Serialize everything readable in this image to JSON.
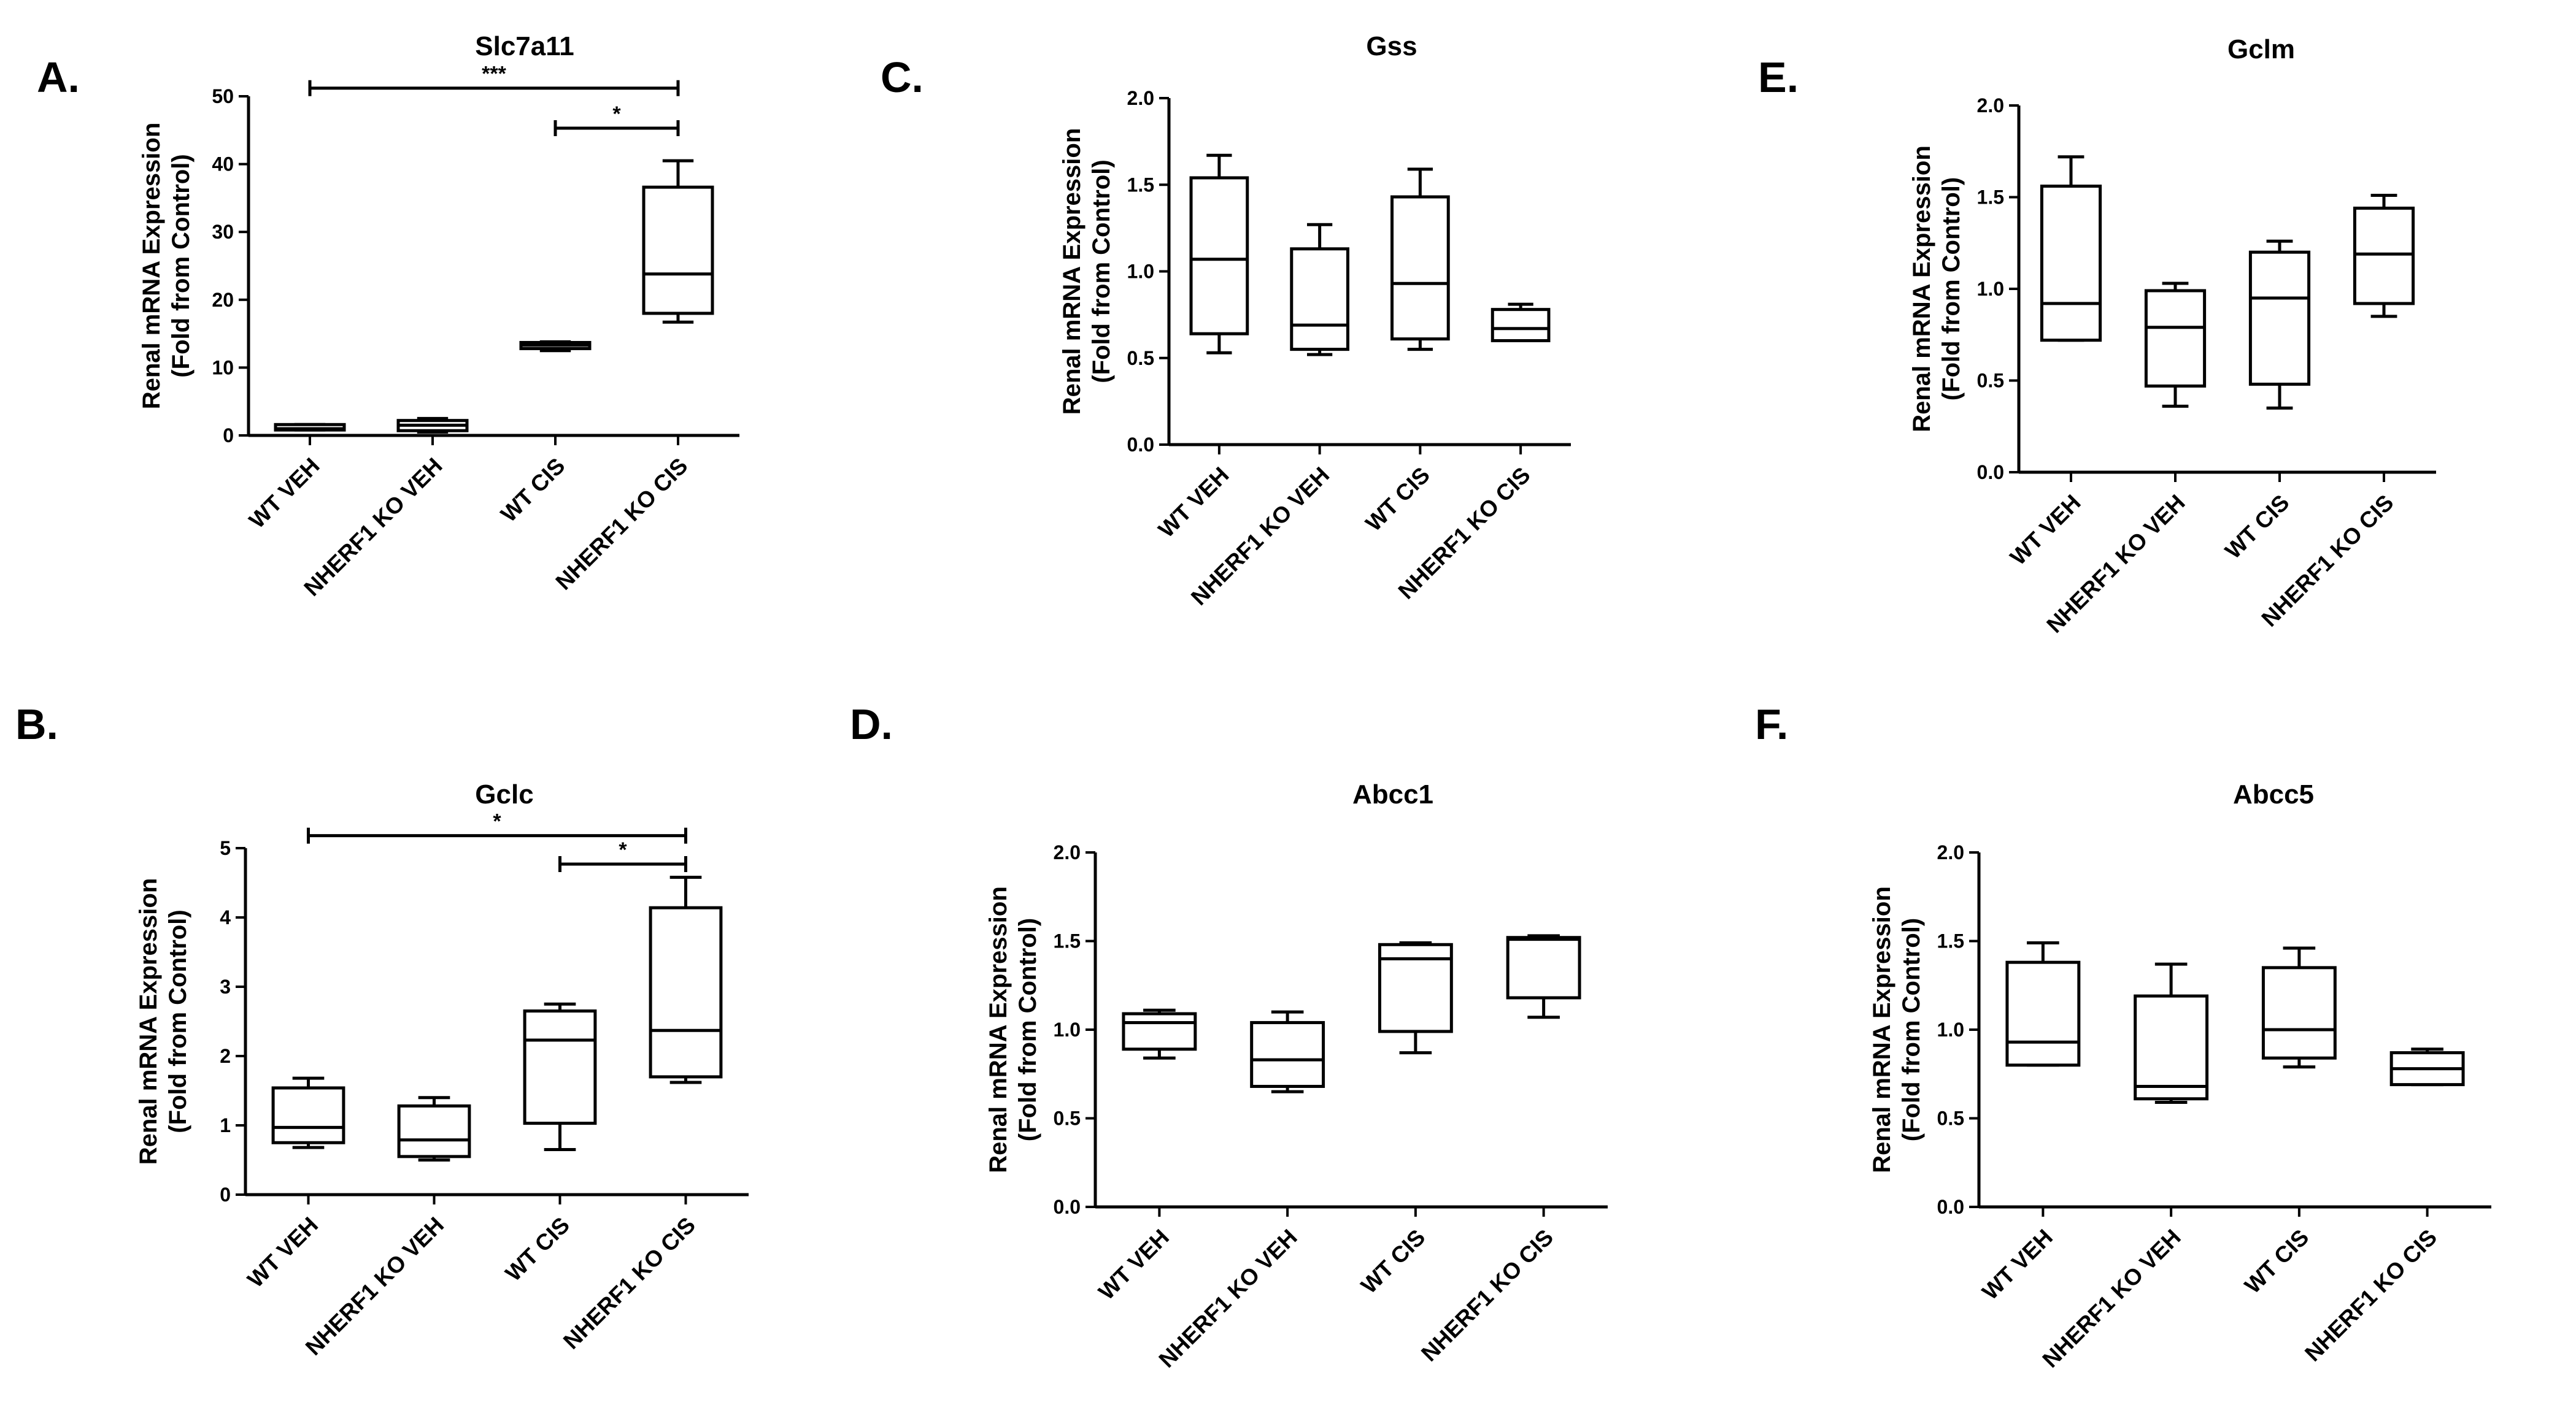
{
  "chart_data": [
    {
      "panel": "A.",
      "type": "boxplot",
      "title": "Slc7a11",
      "ylabel": [
        "Renal mRNA Expression",
        "(Fold from Control)"
      ],
      "xlabel": "",
      "categories": [
        "WT VEH",
        "NHERF1 KO VEH",
        "WT CIS",
        "NHERF1 KO CIS"
      ],
      "ylim": [
        0,
        50
      ],
      "yticks": [
        0,
        10,
        20,
        30,
        40,
        50
      ],
      "ytick_labels": [
        "0",
        "10",
        "20",
        "30",
        "40",
        "50"
      ],
      "boxes": [
        {
          "min": 0.8,
          "q1": 0.8,
          "median": 1.0,
          "q3": 1.6,
          "max": 1.6
        },
        {
          "min": 0.5,
          "q1": 0.7,
          "median": 1.5,
          "q3": 2.2,
          "max": 2.5
        },
        {
          "min": 12.5,
          "q1": 12.8,
          "median": 13.3,
          "q3": 13.7,
          "max": 13.8
        },
        {
          "min": 16.7,
          "q1": 18.0,
          "median": 23.8,
          "q3": 36.6,
          "max": 40.5
        }
      ],
      "significance": [
        {
          "from": 0,
          "to": 3,
          "label": "***",
          "y": 51.2
        },
        {
          "from": 2,
          "to": 3,
          "label": "*",
          "y": 45.3
        }
      ]
    },
    {
      "panel": "C.",
      "type": "boxplot",
      "title": "Gss",
      "ylabel": [
        "Renal mRNA Expression",
        "(Fold from Control)"
      ],
      "xlabel": "",
      "categories": [
        "WT VEH",
        "NHERF1 KO VEH",
        "WT CIS",
        "NHERF1 KO CIS"
      ],
      "ylim": [
        0,
        2.0
      ],
      "yticks": [
        0,
        0.5,
        1.0,
        1.5,
        2.0
      ],
      "ytick_labels": [
        "0.0",
        "0.5",
        "1.0",
        "1.5",
        "2.0"
      ],
      "boxes": [
        {
          "min": 0.53,
          "q1": 0.64,
          "median": 1.07,
          "q3": 1.54,
          "max": 1.67
        },
        {
          "min": 0.52,
          "q1": 0.55,
          "median": 0.69,
          "q3": 1.13,
          "max": 1.27
        },
        {
          "min": 0.55,
          "q1": 0.61,
          "median": 0.93,
          "q3": 1.43,
          "max": 1.59
        },
        {
          "min": 0.6,
          "q1": 0.6,
          "median": 0.67,
          "q3": 0.78,
          "max": 0.81
        }
      ],
      "significance": []
    },
    {
      "panel": "E.",
      "type": "boxplot",
      "title": "Gclm",
      "ylabel": [
        "Renal mRNA Expression",
        "(Fold from Control)"
      ],
      "xlabel": "",
      "categories": [
        "WT VEH",
        "NHERF1 KO VEH",
        "WT CIS",
        "NHERF1 KO CIS"
      ],
      "ylim": [
        0,
        2.0
      ],
      "yticks": [
        0,
        0.5,
        1.0,
        1.5,
        2.0
      ],
      "ytick_labels": [
        "0.0",
        "0.5",
        "1.0",
        "1.5",
        "2.0"
      ],
      "boxes": [
        {
          "min": 0.72,
          "q1": 0.72,
          "median": 0.92,
          "q3": 1.56,
          "max": 1.72
        },
        {
          "min": 0.36,
          "q1": 0.47,
          "median": 0.79,
          "q3": 0.99,
          "max": 1.03
        },
        {
          "min": 0.35,
          "q1": 0.48,
          "median": 0.95,
          "q3": 1.2,
          "max": 1.26
        },
        {
          "min": 0.85,
          "q1": 0.92,
          "median": 1.19,
          "q3": 1.44,
          "max": 1.51
        }
      ],
      "significance": []
    },
    {
      "panel": "B.",
      "type": "boxplot",
      "title": "Gclc",
      "ylabel": [
        "Renal mRNA Expression",
        "(Fold from Control)"
      ],
      "xlabel": "",
      "categories": [
        "WT VEH",
        "NHERF1 KO VEH",
        "WT CIS",
        "NHERF1 KO CIS"
      ],
      "ylim": [
        0,
        5
      ],
      "yticks": [
        0,
        1,
        2,
        3,
        4,
        5
      ],
      "ytick_labels": [
        "0",
        "1",
        "2",
        "3",
        "4",
        "5"
      ],
      "boxes": [
        {
          "min": 0.68,
          "q1": 0.75,
          "median": 0.97,
          "q3": 1.54,
          "max": 1.68
        },
        {
          "min": 0.5,
          "q1": 0.55,
          "median": 0.79,
          "q3": 1.28,
          "max": 1.4
        },
        {
          "min": 0.65,
          "q1": 1.03,
          "median": 2.23,
          "q3": 2.65,
          "max": 2.75
        },
        {
          "min": 1.62,
          "q1": 1.7,
          "median": 2.37,
          "q3": 4.14,
          "max": 4.58
        }
      ],
      "significance": [
        {
          "from": 0,
          "to": 3,
          "label": "*",
          "y": 5.18
        },
        {
          "from": 2,
          "to": 3,
          "label": "*",
          "y": 4.77
        }
      ]
    },
    {
      "panel": "D.",
      "type": "boxplot",
      "title": "Abcc1",
      "ylabel": [
        "Renal mRNA Expression",
        "(Fold from Control)"
      ],
      "xlabel": "",
      "categories": [
        "WT VEH",
        "NHERF1 KO VEH",
        "WT CIS",
        "NHERF1 KO CIS"
      ],
      "ylim": [
        0,
        2.0
      ],
      "yticks": [
        0,
        0.5,
        1.0,
        1.5,
        2.0
      ],
      "ytick_labels": [
        "0.0",
        "0.5",
        "1.0",
        "1.5",
        "2.0"
      ],
      "boxes": [
        {
          "min": 0.84,
          "q1": 0.89,
          "median": 1.04,
          "q3": 1.09,
          "max": 1.11
        },
        {
          "min": 0.65,
          "q1": 0.68,
          "median": 0.83,
          "q3": 1.04,
          "max": 1.1
        },
        {
          "min": 0.87,
          "q1": 0.99,
          "median": 1.4,
          "q3": 1.48,
          "max": 1.49
        },
        {
          "min": 1.07,
          "q1": 1.18,
          "median": 1.51,
          "q3": 1.52,
          "max": 1.53
        }
      ],
      "significance": []
    },
    {
      "panel": "F.",
      "type": "boxplot",
      "title": "Abcc5",
      "ylabel": [
        "Renal mRNA Expression",
        "(Fold from Control)"
      ],
      "xlabel": "",
      "categories": [
        "WT VEH",
        "NHERF1 KO VEH",
        "WT CIS",
        "NHERF1 KO CIS"
      ],
      "ylim": [
        0,
        2.0
      ],
      "yticks": [
        0,
        0.5,
        1.0,
        1.5,
        2.0
      ],
      "ytick_labels": [
        "0.0",
        "0.5",
        "1.0",
        "1.5",
        "2.0"
      ],
      "boxes": [
        {
          "min": 0.8,
          "q1": 0.8,
          "median": 0.93,
          "q3": 1.38,
          "max": 1.49
        },
        {
          "min": 0.59,
          "q1": 0.61,
          "median": 0.68,
          "q3": 1.19,
          "max": 1.37
        },
        {
          "min": 0.79,
          "q1": 0.84,
          "median": 1.0,
          "q3": 1.35,
          "max": 1.46
        },
        {
          "min": 0.69,
          "q1": 0.69,
          "median": 0.78,
          "q3": 0.87,
          "max": 0.89
        }
      ],
      "significance": []
    }
  ]
}
